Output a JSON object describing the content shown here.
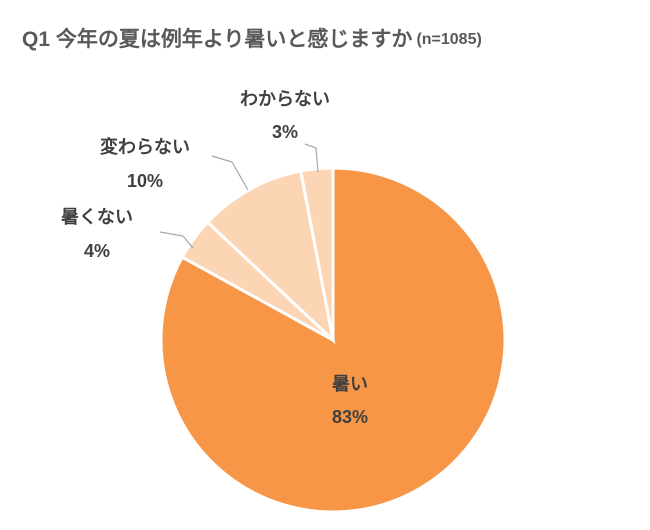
{
  "chart_data": {
    "type": "pie",
    "title": "Q1 今年の夏は例年より暑いと感じますか",
    "subtitle": "(n=1085)",
    "categories": [
      "暑い",
      "暑くない",
      "変わらない",
      "わからない"
    ],
    "values": [
      83,
      4,
      10,
      3
    ],
    "value_labels": [
      "83%",
      "4%",
      "10%",
      "3%"
    ],
    "colors": [
      "#f79646",
      "#fcd5b5",
      "#fcd5b5",
      "#fcd5b5"
    ]
  }
}
